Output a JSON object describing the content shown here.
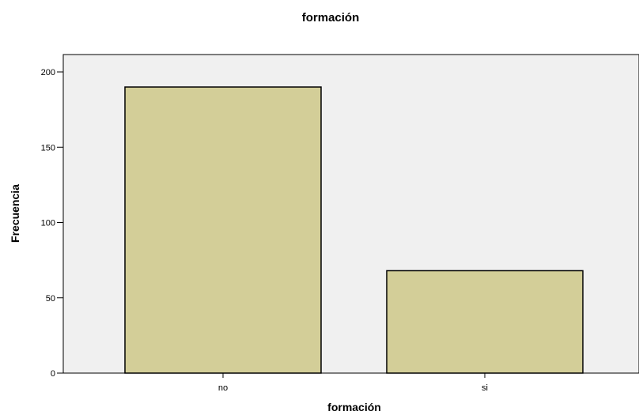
{
  "chart_data": {
    "type": "bar",
    "title": "formación",
    "xlabel": "formación",
    "ylabel": "Frecuencia",
    "categories": [
      "no",
      "si"
    ],
    "values": [
      190,
      68
    ],
    "ylim": [
      0,
      200
    ],
    "yticks": [
      0,
      50,
      100,
      150,
      200
    ],
    "colors": {
      "bar_fill": "#d3ce98",
      "bar_stroke": "#000000",
      "plot_background": "#f0f0f0"
    },
    "grid": false,
    "legend": "none"
  }
}
